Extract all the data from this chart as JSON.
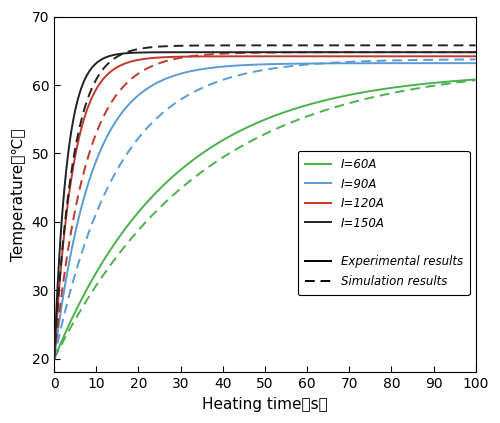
{
  "title": "",
  "xlabel": "Heating time（s）",
  "ylabel": "Temperature（℃）",
  "xlim": [
    0,
    100
  ],
  "ylim": [
    18,
    70
  ],
  "xticks": [
    0,
    10,
    20,
    30,
    40,
    50,
    60,
    70,
    80,
    90,
    100
  ],
  "yticks": [
    20,
    30,
    40,
    50,
    60,
    70
  ],
  "T0": 20.0,
  "curves": [
    {
      "label": "I=60A",
      "color": "#4daf4d",
      "T_exp_inf": 62.0,
      "tau_exp": 28.0,
      "T_sim_inf": 63.2,
      "tau_sim": 35.0
    },
    {
      "label": "I=90A",
      "color": "#5b9bd5",
      "T_exp_inf": 63.2,
      "tau_exp": 9.0,
      "T_sim_inf": 63.8,
      "tau_sim": 15.0
    },
    {
      "label": "I=120A",
      "color": "#c0392b",
      "T_exp_inf": 64.2,
      "tau_exp": 4.5,
      "T_sim_inf": 64.8,
      "tau_sim": 7.5
    },
    {
      "label": "I=150A",
      "color": "#222222",
      "T_exp_inf": 64.8,
      "tau_exp": 3.0,
      "T_sim_inf": 65.8,
      "tau_sim": 4.5
    }
  ],
  "legend_colors": [
    "#4daf4d",
    "#5b9bd5",
    "#c0392b",
    "#222222"
  ],
  "legend_labels": [
    "I=60A",
    "I=90A",
    "I=120A",
    "I=150A"
  ],
  "exp_label": "Experimental results",
  "sim_label": "Simulation results",
  "linewidth": 1.4,
  "background_color": "#ffffff"
}
